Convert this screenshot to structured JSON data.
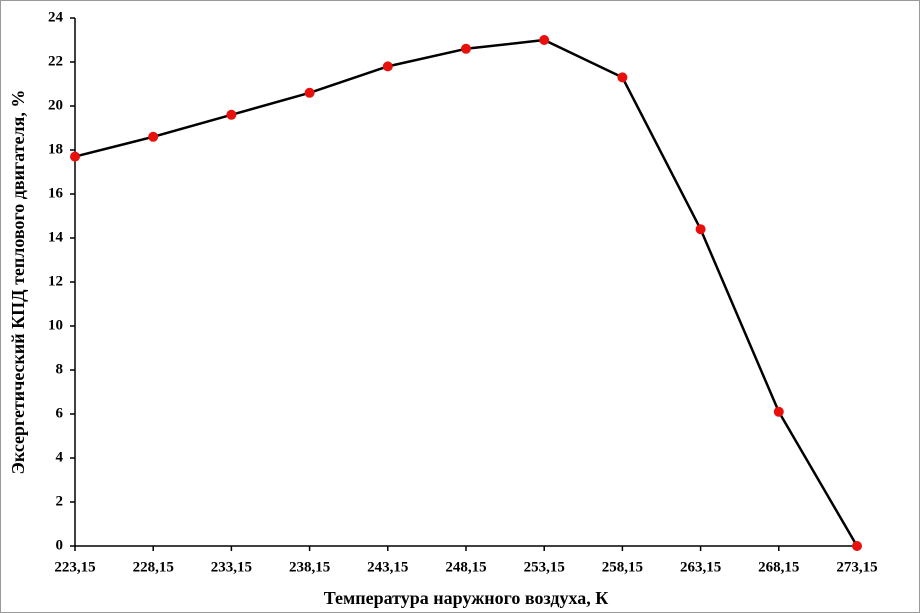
{
  "chart_data": {
    "type": "line",
    "x_label": "Температура наружного воздуха, К",
    "y_label": "Эксергетический КПД теплового двигателя, %",
    "x": [
      223.15,
      228.15,
      233.15,
      238.15,
      243.15,
      248.15,
      253.15,
      258.15,
      263.15,
      268.15,
      273.15
    ],
    "values": [
      17.7,
      18.6,
      19.6,
      20.6,
      21.8,
      22.6,
      23.0,
      21.3,
      14.4,
      6.1,
      0
    ],
    "color": "#000000",
    "marker_color": "#e8100c",
    "xlim": [
      223.15,
      273.15
    ],
    "xticks": [
      {
        "value": 223.15,
        "label": "223,15"
      },
      {
        "value": 228.15,
        "label": "228,15"
      },
      {
        "value": 233.15,
        "label": "233,15"
      },
      {
        "value": 238.15,
        "label": "238,15"
      },
      {
        "value": 243.15,
        "label": "243,15"
      },
      {
        "value": 248.15,
        "label": "248,15"
      },
      {
        "value": 253.15,
        "label": "253,15"
      },
      {
        "value": 258.15,
        "label": "258,15"
      },
      {
        "value": 263.15,
        "label": "263,15"
      },
      {
        "value": 268.15,
        "label": "268,15"
      },
      {
        "value": 273.15,
        "label": "273,15"
      }
    ],
    "ylim": [
      0,
      24
    ],
    "yticks": [
      0,
      2,
      4,
      6,
      8,
      10,
      12,
      14,
      16,
      18,
      20,
      22,
      24
    ],
    "grid": false
  }
}
